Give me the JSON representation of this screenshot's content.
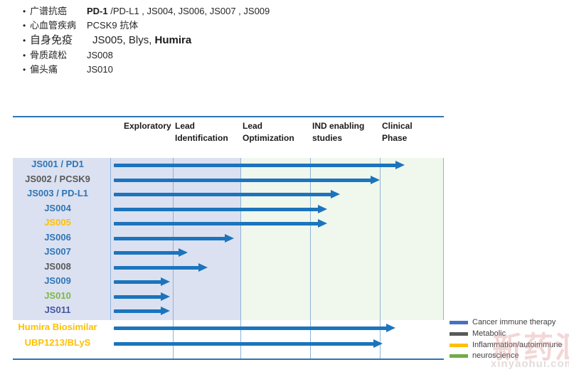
{
  "bullets": [
    {
      "label": "广谱抗癌",
      "pre": "",
      "bold": "PD-1",
      "post": " /PD-L1 , JS004, JS006, JS007 , JS009"
    },
    {
      "label": "心血管疾病",
      "pre": "PCSK9 抗体",
      "bold": "",
      "post": ""
    },
    {
      "label": "自身免疫",
      "pre": "JS005, Blys, ",
      "bold": "Humira",
      "post": ""
    },
    {
      "label": "骨质疏松",
      "pre": "JS008",
      "bold": "",
      "post": ""
    },
    {
      "label": "偏头痛",
      "pre": "JS010",
      "bold": "",
      "post": ""
    }
  ],
  "colors": {
    "arrow_blue": "#1b74bd",
    "band_left": "#dbe1f1",
    "band_right": "#f0f7ec",
    "gridline": "#8fb4d8",
    "frame_line": "#2e74b5",
    "label_blue": "#2e75b6",
    "label_gray": "#595959",
    "label_yellow": "#ffc000",
    "label_green": "#7db843",
    "label_navy": "#45569e"
  },
  "chart_data": {
    "type": "gantt",
    "title": "",
    "phases": [
      "Exploratory",
      "Lead Identification",
      "Lead Optimization",
      "IND enabling studies",
      "Clinical Phase"
    ],
    "rows": [
      {
        "label": "JS001 / PD1",
        "color": "#2e75b6",
        "progress": 4.39,
        "phase_reached": "Clinical Phase"
      },
      {
        "label": "JS002 / PCSK9",
        "color": "#595959",
        "progress": 4.0,
        "phase_reached": "IND enabling studies complete"
      },
      {
        "label": "JS003 / PD-L1",
        "color": "#2e75b6",
        "progress": 3.43,
        "phase_reached": "IND enabling studies"
      },
      {
        "label": "JS004",
        "color": "#2e75b6",
        "progress": 3.24,
        "phase_reached": "IND enabling studies"
      },
      {
        "label": "JS005",
        "color": "#ffc000",
        "progress": 3.24,
        "phase_reached": "IND enabling studies"
      },
      {
        "label": "JS006",
        "color": "#2e75b6",
        "progress": 1.91,
        "phase_reached": "Lead Identification"
      },
      {
        "label": "JS007",
        "color": "#2e75b6",
        "progress": 1.22,
        "phase_reached": "Lead Identification"
      },
      {
        "label": "JS008",
        "color": "#595959",
        "progress": 1.52,
        "phase_reached": "Lead Identification"
      },
      {
        "label": "JS009",
        "color": "#2e75b6",
        "progress": 0.95,
        "phase_reached": "Exploratory"
      },
      {
        "label": "JS010",
        "color": "#7db843",
        "progress": 0.95,
        "phase_reached": "Exploratory"
      },
      {
        "label": "JS011",
        "color": "#45569e",
        "progress": 0.95,
        "phase_reached": "Exploratory"
      },
      {
        "label": "Humira Biosimilar",
        "color": "#ffc000",
        "progress": 4.25,
        "phase_reached": "Clinical Phase"
      },
      {
        "label": "UBP1213/BLyS",
        "color": "#ffc000",
        "progress": 4.05,
        "phase_reached": "Clinical Phase"
      }
    ],
    "legend": [
      {
        "label": "Cancer immune therapy",
        "color": "#4472c4"
      },
      {
        "label": "Metabolic",
        "color": "#595959"
      },
      {
        "label": "Inflammation/autoimmune",
        "color": "#ffc000"
      },
      {
        "label": "neuroscience",
        "color": "#70ad47"
      }
    ],
    "legend_position": "bottom-right",
    "grid": true
  },
  "watermark": {
    "cn": "新药汇",
    "url": "xinyaohui.com"
  }
}
